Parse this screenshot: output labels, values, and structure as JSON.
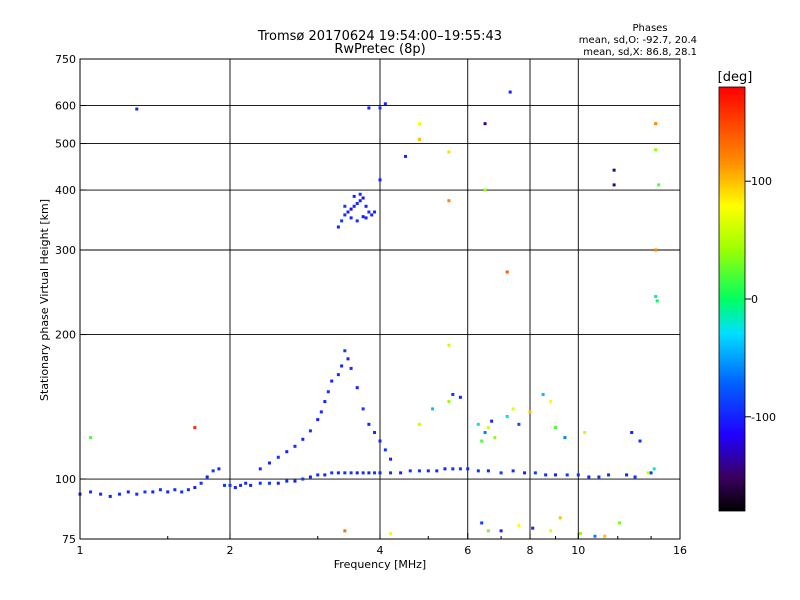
{
  "chart_data": {
    "type": "scatter",
    "title": "Tromsø 20170624 19:54:00–19:55:43",
    "subtitle": "RwPretec (8p)",
    "xlabel": "Frequency [MHz]",
    "ylabel": "Stationary phase Virtual Height [km]",
    "x_scale": "log",
    "y_scale": "log",
    "xlim": [
      1,
      16
    ],
    "ylim": [
      75,
      750
    ],
    "x_ticks": [
      1,
      2,
      4,
      6,
      8,
      10,
      16
    ],
    "y_ticks": [
      75,
      100,
      200,
      300,
      400,
      500,
      600,
      750
    ],
    "grid": true,
    "phases_box": {
      "title": "Phases",
      "line1": "mean, sd,O: -92.7, 20.4",
      "line2": "mean, sd,X: 86.8, 28.1"
    },
    "colorbar": {
      "label": "[deg]",
      "range": [
        -180,
        180
      ],
      "ticks": [
        100,
        0,
        -100
      ]
    },
    "series": [
      {
        "points": [
          [
            1.0,
            93,
            -95
          ],
          [
            1.05,
            94,
            -92
          ],
          [
            1.1,
            93,
            -98
          ],
          [
            1.15,
            92,
            -100
          ],
          [
            1.2,
            93,
            -95
          ],
          [
            1.25,
            94,
            -100
          ],
          [
            1.3,
            93,
            -95
          ],
          [
            1.35,
            94,
            -90
          ],
          [
            1.4,
            94,
            -100
          ],
          [
            1.45,
            95,
            -95
          ],
          [
            1.5,
            94,
            -100
          ],
          [
            1.55,
            95,
            -95
          ],
          [
            1.6,
            94,
            -92
          ],
          [
            1.65,
            95,
            -95
          ],
          [
            1.7,
            96,
            -100
          ],
          [
            1.75,
            98,
            -95
          ],
          [
            1.8,
            101,
            -100
          ],
          [
            1.85,
            104,
            -90
          ],
          [
            1.9,
            105,
            -100
          ],
          [
            1.95,
            97,
            -95
          ],
          [
            2.0,
            97,
            -90
          ],
          [
            2.05,
            96,
            -100
          ],
          [
            2.1,
            97,
            -95
          ],
          [
            2.15,
            98,
            -95
          ],
          [
            2.2,
            97,
            -100
          ],
          [
            2.3,
            98,
            -95
          ],
          [
            2.4,
            98,
            -90
          ],
          [
            2.5,
            98,
            -100
          ],
          [
            2.6,
            99,
            -95
          ],
          [
            2.7,
            99,
            -100
          ],
          [
            2.8,
            100,
            -90
          ],
          [
            2.9,
            101,
            -100
          ],
          [
            3.0,
            102,
            -95
          ],
          [
            3.1,
            102,
            -100
          ],
          [
            3.2,
            103,
            -90
          ],
          [
            3.3,
            103,
            -100
          ],
          [
            3.4,
            103,
            -95
          ],
          [
            3.5,
            103,
            -90
          ],
          [
            3.6,
            103,
            -100
          ],
          [
            3.7,
            103,
            -95
          ],
          [
            3.8,
            103,
            -100
          ],
          [
            3.9,
            103,
            -90
          ],
          [
            4.0,
            103,
            -100
          ],
          [
            4.2,
            103,
            -95
          ],
          [
            4.4,
            103,
            -100
          ],
          [
            4.6,
            104,
            -95
          ],
          [
            4.8,
            104,
            -90
          ],
          [
            5.0,
            104,
            -100
          ],
          [
            5.2,
            104,
            -95
          ],
          [
            5.4,
            105,
            -100
          ],
          [
            5.6,
            105,
            -95
          ],
          [
            5.8,
            105,
            -90
          ],
          [
            6.0,
            105,
            -100
          ],
          [
            6.3,
            104,
            -95
          ],
          [
            6.6,
            104,
            -100
          ],
          [
            7.0,
            103,
            -90
          ],
          [
            7.4,
            104,
            -95
          ],
          [
            7.8,
            103,
            -100
          ],
          [
            8.2,
            103,
            -90
          ],
          [
            8.6,
            102,
            -95
          ],
          [
            9.0,
            102,
            -100
          ],
          [
            9.5,
            102,
            -90
          ],
          [
            10.0,
            102,
            -95
          ],
          [
            10.5,
            101,
            -100
          ],
          [
            11.0,
            101,
            -90
          ],
          [
            11.5,
            102,
            -95
          ],
          [
            12.5,
            102,
            -100
          ],
          [
            13.0,
            101,
            -95
          ],
          [
            14.0,
            103,
            -90
          ]
        ]
      },
      {
        "points": [
          [
            2.3,
            105,
            -95
          ],
          [
            2.4,
            108,
            -100
          ],
          [
            2.5,
            111,
            -90
          ],
          [
            2.6,
            114,
            -100
          ],
          [
            2.7,
            117,
            -95
          ],
          [
            2.8,
            121,
            -100
          ],
          [
            2.9,
            126,
            -90
          ],
          [
            3.0,
            133,
            -100
          ],
          [
            3.05,
            138,
            -95
          ],
          [
            3.1,
            145,
            -100
          ],
          [
            3.15,
            152,
            -90
          ],
          [
            3.2,
            160,
            -100
          ],
          [
            3.3,
            165,
            -95
          ],
          [
            3.35,
            172,
            -100
          ],
          [
            3.4,
            185,
            -90
          ],
          [
            3.45,
            178,
            -100
          ],
          [
            3.5,
            170,
            -95
          ],
          [
            3.6,
            155,
            -100
          ],
          [
            3.7,
            140,
            -90
          ],
          [
            3.8,
            130,
            -100
          ],
          [
            3.9,
            125,
            -95
          ],
          [
            4.0,
            120,
            -100
          ],
          [
            4.1,
            115,
            -90
          ],
          [
            4.2,
            110,
            -100
          ]
        ]
      },
      {
        "points": [
          [
            3.3,
            335,
            -100
          ],
          [
            3.35,
            345,
            -90
          ],
          [
            3.4,
            355,
            -95
          ],
          [
            3.45,
            360,
            -100
          ],
          [
            3.5,
            365,
            -110
          ],
          [
            3.55,
            370,
            -100
          ],
          [
            3.6,
            375,
            -95
          ],
          [
            3.65,
            380,
            -100
          ],
          [
            3.7,
            385,
            -110
          ],
          [
            3.75,
            370,
            -100
          ],
          [
            3.8,
            360,
            -95
          ],
          [
            3.85,
            355,
            -100
          ],
          [
            3.5,
            350,
            -100
          ],
          [
            3.6,
            345,
            -95
          ],
          [
            3.7,
            352,
            -100
          ],
          [
            3.4,
            370,
            -90
          ],
          [
            3.55,
            388,
            -100
          ],
          [
            3.65,
            392,
            -95
          ],
          [
            3.75,
            350,
            -100
          ],
          [
            3.9,
            360,
            -95
          ]
        ]
      },
      {
        "points": [
          [
            6.3,
            130,
            -20
          ],
          [
            6.4,
            120,
            20
          ],
          [
            6.5,
            125,
            -60
          ],
          [
            6.6,
            128,
            60
          ],
          [
            6.7,
            132,
            -100
          ],
          [
            6.8,
            122,
            40
          ],
          [
            7.2,
            135,
            -30
          ],
          [
            7.4,
            140,
            70
          ],
          [
            7.6,
            130,
            -80
          ],
          [
            8.0,
            138,
            100
          ],
          [
            8.5,
            150,
            -40
          ],
          [
            8.8,
            145,
            80
          ],
          [
            9.0,
            128,
            20
          ],
          [
            9.4,
            122,
            -60
          ],
          [
            10.3,
            125,
            60
          ],
          [
            12.8,
            125,
            -100
          ],
          [
            13.3,
            120,
            -95
          ],
          [
            6.4,
            81,
            -90
          ],
          [
            6.6,
            78,
            30
          ],
          [
            7.6,
            80,
            80
          ],
          [
            8.1,
            79,
            -100
          ],
          [
            8.8,
            78,
            70
          ],
          [
            10.1,
            77,
            40
          ],
          [
            10.8,
            76,
            -60
          ],
          [
            11.3,
            76,
            100
          ],
          [
            13.8,
            103,
            60
          ],
          [
            14.2,
            105,
            -20
          ],
          [
            5.5,
            145,
            40
          ],
          [
            5.6,
            150,
            -90
          ],
          [
            5.8,
            148,
            -100
          ],
          [
            4.8,
            130,
            60
          ],
          [
            5.1,
            140,
            -40
          ],
          [
            5.5,
            190,
            60
          ]
        ]
      },
      {
        "points": [
          [
            1.3,
            590,
            -100
          ],
          [
            1.7,
            128,
            160
          ],
          [
            1.05,
            122,
            20
          ],
          [
            3.8,
            593,
            -100
          ],
          [
            4.0,
            593,
            -90
          ],
          [
            4.1,
            605,
            -100
          ],
          [
            4.0,
            420,
            -100
          ],
          [
            4.5,
            470,
            -100
          ],
          [
            4.8,
            550,
            80
          ],
          [
            4.8,
            510,
            100
          ],
          [
            5.5,
            480,
            90
          ],
          [
            5.5,
            380,
            120
          ],
          [
            6.5,
            550,
            -140
          ],
          [
            6.5,
            400,
            40
          ],
          [
            7.3,
            640,
            -100
          ],
          [
            7.2,
            270,
            140
          ],
          [
            11.8,
            440,
            -140
          ],
          [
            11.8,
            410,
            -140
          ],
          [
            14.3,
            550,
            120
          ],
          [
            14.3,
            485,
            40
          ],
          [
            14.5,
            410,
            20
          ],
          [
            14.3,
            300,
            120
          ],
          [
            14.3,
            240,
            -20
          ],
          [
            14.4,
            235,
            0
          ],
          [
            3.4,
            78,
            130
          ],
          [
            4.2,
            77,
            80
          ],
          [
            7.0,
            78,
            -100
          ],
          [
            9.2,
            83,
            100
          ],
          [
            12.1,
            81,
            30
          ]
        ]
      }
    ]
  }
}
